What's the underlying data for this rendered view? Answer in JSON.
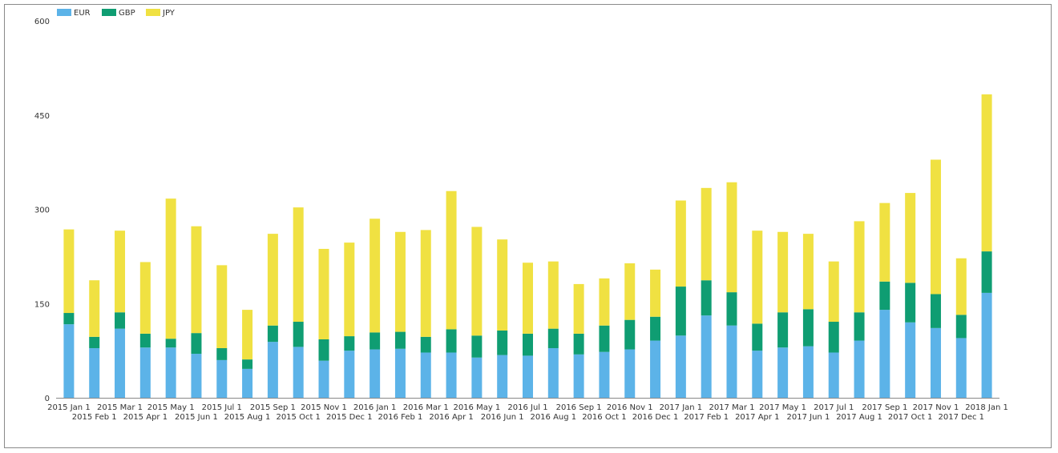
{
  "chart_data": {
    "type": "bar",
    "stacked": true,
    "title": "",
    "xlabel": "",
    "ylabel": "",
    "ylim": [
      0,
      600
    ],
    "yticks": [
      0,
      150,
      300,
      450,
      600
    ],
    "grid": false,
    "legend_position": "top-left",
    "categories": [
      "2015 Jan 1",
      "2015 Feb 1",
      "2015 Mar 1",
      "2015 Apr 1",
      "2015 May 1",
      "2015 Jun 1",
      "2015 Jul 1",
      "2015 Aug 1",
      "2015 Sep 1",
      "2015 Oct 1",
      "2015 Nov 1",
      "2015 Dec 1",
      "2016 Jan 1",
      "2016 Feb 1",
      "2016 Mar 1",
      "2016 Apr 1",
      "2016 May 1",
      "2016 Jun 1",
      "2016 Jul 1",
      "2016 Aug 1",
      "2016 Sep 1",
      "2016 Oct 1",
      "2016 Nov 1",
      "2016 Dec 1",
      "2017 Jan 1",
      "2017 Feb 1",
      "2017 Mar 1",
      "2017 Apr 1",
      "2017 May 1",
      "2017 Jun 1",
      "2017 Jul 1",
      "2017 Aug 1",
      "2017 Sep 1",
      "2017 Oct 1",
      "2017 Nov 1",
      "2017 Dec 1",
      "2018 Jan 1"
    ],
    "series": [
      {
        "name": "EUR",
        "color": "#5cb3e8",
        "values": [
          117,
          79,
          110,
          80,
          80,
          70,
          60,
          46,
          89,
          81,
          59,
          75,
          77,
          78,
          72,
          72,
          64,
          68,
          67,
          79,
          69,
          73,
          77,
          91,
          99,
          131,
          115,
          75,
          80,
          82,
          72,
          91,
          140,
          120,
          111,
          95,
          167
        ]
      },
      {
        "name": "GBP",
        "color": "#0f9d72",
        "values": [
          18,
          18,
          26,
          22,
          14,
          33,
          19,
          15,
          26,
          40,
          34,
          23,
          27,
          27,
          25,
          37,
          35,
          39,
          35,
          31,
          33,
          42,
          47,
          38,
          78,
          56,
          53,
          43,
          56,
          59,
          49,
          45,
          45,
          63,
          54,
          37,
          66
        ]
      },
      {
        "name": "JPY",
        "color": "#f0e142",
        "values": [
          133,
          90,
          130,
          114,
          223,
          170,
          132,
          79,
          146,
          182,
          144,
          149,
          181,
          159,
          170,
          220,
          173,
          145,
          113,
          107,
          79,
          75,
          90,
          75,
          137,
          147,
          175,
          148,
          128,
          120,
          96,
          145,
          125,
          143,
          214,
          90,
          250
        ]
      }
    ]
  }
}
